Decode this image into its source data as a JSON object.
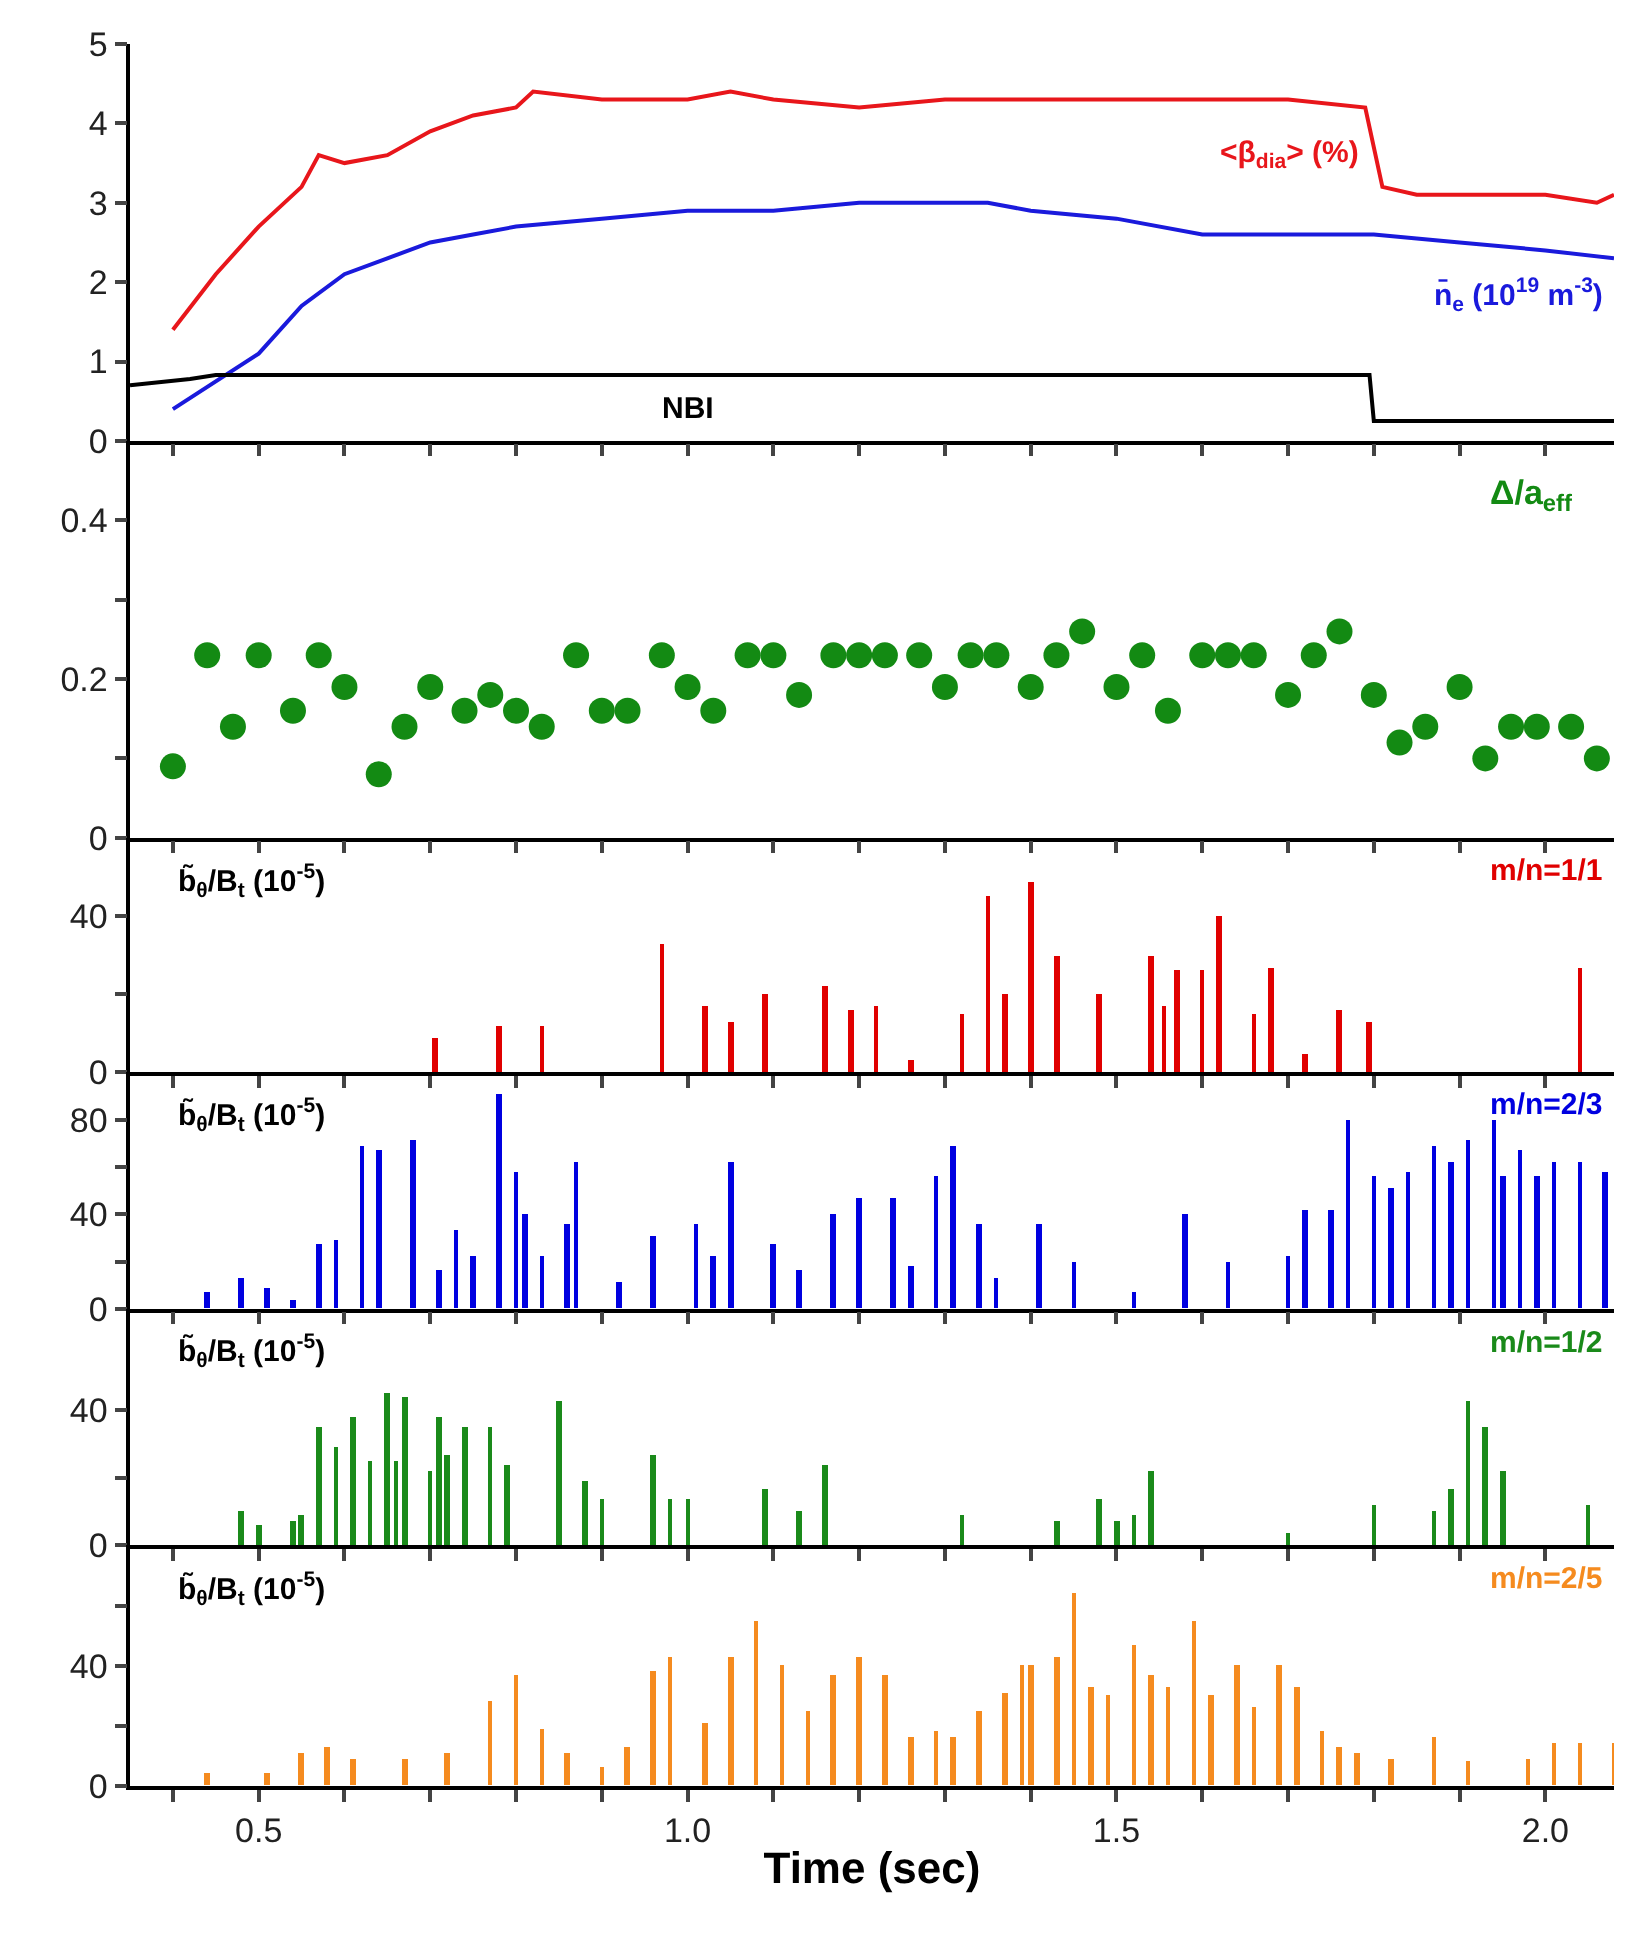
{
  "chart_data": [
    {
      "type": "line",
      "xlim": [
        0.35,
        2.08
      ],
      "xticks": [
        {
          "value": 0.4,
          "label": null
        },
        {
          "value": 0.5,
          "label": null
        },
        {
          "value": 0.6,
          "label": null
        },
        {
          "value": 0.7,
          "label": null
        },
        {
          "value": 0.8,
          "label": null
        },
        {
          "value": 0.9,
          "label": null
        },
        {
          "value": 1.0,
          "label": null
        },
        {
          "value": 1.1,
          "label": null
        },
        {
          "value": 1.2,
          "label": null
        },
        {
          "value": 1.3,
          "label": null
        },
        {
          "value": 1.4,
          "label": null
        },
        {
          "value": 1.5,
          "label": null
        },
        {
          "value": 1.6,
          "label": null
        },
        {
          "value": 1.7,
          "label": null
        },
        {
          "value": 1.8,
          "label": null
        },
        {
          "value": 1.9,
          "label": null
        },
        {
          "value": 2.0,
          "label": null
        }
      ],
      "ylim": [
        0,
        5
      ],
      "yticks": [
        0,
        1,
        2,
        3,
        4,
        5
      ],
      "tick_labels": "y",
      "series": [
        {
          "name": "<β$_{dia}$> (%)",
          "color": "#e8161b",
          "x": [
            0.4,
            0.45,
            0.5,
            0.55,
            0.57,
            0.6,
            0.65,
            0.7,
            0.75,
            0.8,
            0.82,
            0.9,
            1.0,
            1.05,
            1.1,
            1.2,
            1.3,
            1.4,
            1.5,
            1.6,
            1.7,
            1.79,
            1.81,
            1.85,
            1.9,
            2.0,
            2.06,
            2.08
          ],
          "values": [
            1.4,
            2.1,
            2.7,
            3.2,
            3.6,
            3.5,
            3.6,
            3.9,
            4.1,
            4.2,
            4.4,
            4.3,
            4.3,
            4.4,
            4.3,
            4.2,
            4.3,
            4.3,
            4.3,
            4.3,
            4.3,
            4.2,
            3.2,
            3.1,
            3.1,
            3.1,
            3.0,
            3.1
          ]
        },
        {
          "name": "n̄$_{e}$ (10$^{19}$ m$^{-3}$)",
          "color": "#1a1adc",
          "x": [
            0.4,
            0.5,
            0.55,
            0.6,
            0.65,
            0.7,
            0.75,
            0.8,
            0.9,
            1.0,
            1.1,
            1.2,
            1.3,
            1.35,
            1.4,
            1.5,
            1.6,
            1.7,
            1.8,
            1.9,
            2.0,
            2.08
          ],
          "values": [
            0.4,
            1.1,
            1.7,
            2.1,
            2.3,
            2.5,
            2.6,
            2.7,
            2.8,
            2.9,
            2.9,
            3.0,
            3.0,
            3.0,
            2.9,
            2.8,
            2.6,
            2.6,
            2.6,
            2.5,
            2.4,
            2.3
          ]
        },
        {
          "name": "NBI",
          "color": "#000000",
          "x": [
            0.35,
            0.42,
            0.45,
            1.795,
            1.8,
            2.08
          ],
          "values": [
            0.7,
            0.78,
            0.83,
            0.83,
            0.25,
            0.25
          ]
        }
      ]
    },
    {
      "type": "scatter",
      "marker": "circle",
      "xlim": [
        0.35,
        2.08
      ],
      "xticks": [
        {
          "value": 0.4,
          "label": null
        },
        {
          "value": 0.5,
          "label": null
        },
        {
          "value": 0.6,
          "label": null
        },
        {
          "value": 0.7,
          "label": null
        },
        {
          "value": 0.8,
          "label": null
        },
        {
          "value": 0.9,
          "label": null
        },
        {
          "value": 1.0,
          "label": null
        },
        {
          "value": 1.1,
          "label": null
        },
        {
          "value": 1.2,
          "label": null
        },
        {
          "value": 1.3,
          "label": null
        },
        {
          "value": 1.4,
          "label": null
        },
        {
          "value": 1.5,
          "label": null
        },
        {
          "value": 1.6,
          "label": null
        },
        {
          "value": 1.7,
          "label": null
        },
        {
          "value": 1.8,
          "label": null
        },
        {
          "value": 1.9,
          "label": null
        },
        {
          "value": 2.0,
          "label": null
        }
      ],
      "ylim": [
        0,
        0.5
      ],
      "yticks": [
        0,
        {
          "value": 0.1,
          "label": null
        },
        0.2,
        {
          "value": 0.3,
          "label": null
        },
        0.4
      ],
      "tick_labels": "y",
      "x": [
        0.4,
        0.44,
        0.47,
        0.5,
        0.54,
        0.57,
        0.6,
        0.64,
        0.67,
        0.7,
        0.74,
        0.77,
        0.8,
        0.83,
        0.87,
        0.9,
        0.93,
        0.97,
        1.0,
        1.03,
        1.07,
        1.1,
        1.13,
        1.17,
        1.2,
        1.23,
        1.27,
        1.3,
        1.33,
        1.36,
        1.4,
        1.43,
        1.46,
        1.5,
        1.53,
        1.56,
        1.6,
        1.63,
        1.66,
        1.7,
        1.73,
        1.76,
        1.8,
        1.83,
        1.86,
        1.9,
        1.93,
        1.96,
        1.99,
        2.03,
        2.06
      ],
      "series": [
        {
          "name": "Δ/a$_{eff}$",
          "color": "#138a13",
          "values": [
            0.09,
            0.23,
            0.14,
            0.23,
            0.16,
            0.23,
            0.19,
            0.08,
            0.14,
            0.19,
            0.16,
            0.18,
            0.16,
            0.14,
            0.23,
            0.16,
            0.16,
            0.23,
            0.19,
            0.16,
            0.23,
            0.23,
            0.18,
            0.23,
            0.23,
            0.23,
            0.23,
            0.19,
            0.23,
            0.23,
            0.19,
            0.23,
            0.26,
            0.19,
            0.23,
            0.16,
            0.23,
            0.23,
            0.23,
            0.18,
            0.23,
            0.26,
            0.18,
            0.12,
            0.14,
            0.19,
            0.1,
            0.14,
            0.14,
            0.14,
            0.1
          ]
        }
      ]
    },
    {
      "type": "bar",
      "xlim": [
        0.35,
        2.08
      ],
      "xticks": [
        {
          "value": 0.4,
          "label": null
        },
        {
          "value": 0.5,
          "label": null
        },
        {
          "value": 0.6,
          "label": null
        },
        {
          "value": 0.7,
          "label": null
        },
        {
          "value": 0.8,
          "label": null
        },
        {
          "value": 0.9,
          "label": null
        },
        {
          "value": 1.0,
          "label": null
        },
        {
          "value": 1.1,
          "label": null
        },
        {
          "value": 1.2,
          "label": null
        },
        {
          "value": 1.3,
          "label": null
        },
        {
          "value": 1.4,
          "label": null
        },
        {
          "value": 1.5,
          "label": null
        },
        {
          "value": 1.6,
          "label": null
        },
        {
          "value": 1.7,
          "label": null
        },
        {
          "value": 1.8,
          "label": null
        },
        {
          "value": 1.9,
          "label": null
        },
        {
          "value": 2.0,
          "label": null
        }
      ],
      "ylim": [
        0,
        60
      ],
      "yticks": [
        0,
        {
          "value": 20,
          "label": null
        },
        40
      ],
      "tick_labels": "y",
      "annotations": [
        "b̃$_{θ}$/B$_{t}$ (10$^{-5}$)"
      ],
      "x": [
        0.705,
        0.78,
        0.83,
        0.97,
        1.02,
        1.05,
        1.09,
        1.16,
        1.19,
        1.22,
        1.26,
        1.32,
        1.35,
        1.37,
        1.4,
        1.43,
        1.48,
        1.54,
        1.555,
        1.57,
        1.6,
        1.62,
        1.66,
        1.68,
        1.72,
        1.76,
        1.795,
        2.04
      ],
      "series": [
        {
          "name": "m/n=1/1",
          "color": "#e00000",
          "values": [
            9,
            12,
            12,
            33,
            17,
            13,
            20,
            22,
            16,
            17,
            3,
            15,
            45,
            20,
            49,
            30,
            20,
            30,
            17,
            26,
            26,
            40,
            15,
            27,
            5,
            16,
            13,
            27
          ]
        }
      ]
    },
    {
      "type": "bar",
      "xlim": [
        0.35,
        2.08
      ],
      "xticks": [
        {
          "value": 0.4,
          "label": null
        },
        {
          "value": 0.5,
          "label": null
        },
        {
          "value": 0.6,
          "label": null
        },
        {
          "value": 0.7,
          "label": null
        },
        {
          "value": 0.8,
          "label": null
        },
        {
          "value": 0.9,
          "label": null
        },
        {
          "value": 1.0,
          "label": null
        },
        {
          "value": 1.1,
          "label": null
        },
        {
          "value": 1.2,
          "label": null
        },
        {
          "value": 1.3,
          "label": null
        },
        {
          "value": 1.4,
          "label": null
        },
        {
          "value": 1.5,
          "label": null
        },
        {
          "value": 1.6,
          "label": null
        },
        {
          "value": 1.7,
          "label": null
        },
        {
          "value": 1.8,
          "label": null
        },
        {
          "value": 1.9,
          "label": null
        },
        {
          "value": 2.0,
          "label": null
        }
      ],
      "ylim": [
        0,
        100
      ],
      "yticks": [
        0,
        {
          "value": 20,
          "label": null
        },
        40,
        {
          "value": 60,
          "label": null
        },
        80
      ],
      "tick_labels": "y",
      "annotations": [
        "b̃$_{θ}$/B$_{t}$ (10$^{-5}$)"
      ],
      "x": [
        0.44,
        0.48,
        0.51,
        0.54,
        0.57,
        0.59,
        0.62,
        0.64,
        0.68,
        0.71,
        0.73,
        0.75,
        0.78,
        0.8,
        0.81,
        0.83,
        0.86,
        0.87,
        0.92,
        0.96,
        1.01,
        1.03,
        1.05,
        1.1,
        1.13,
        1.17,
        1.2,
        1.24,
        1.26,
        1.29,
        1.31,
        1.34,
        1.36,
        1.41,
        1.45,
        1.52,
        1.58,
        1.63,
        1.7,
        1.72,
        1.75,
        1.77,
        1.8,
        1.82,
        1.84,
        1.87,
        1.89,
        1.91,
        1.94,
        1.95,
        1.97,
        1.99,
        2.01,
        2.04,
        2.07
      ],
      "series": [
        {
          "name": "m/n=2/3",
          "color": "#0000e0",
          "values": [
            7,
            13,
            9,
            4,
            27,
            29,
            69,
            67,
            71,
            16,
            33,
            22,
            91,
            58,
            40,
            22,
            36,
            62,
            11,
            31,
            36,
            22,
            62,
            27,
            16,
            40,
            47,
            47,
            18,
            56,
            69,
            36,
            13,
            36,
            20,
            7,
            40,
            20,
            22,
            42,
            42,
            80,
            56,
            51,
            58,
            69,
            62,
            71,
            80,
            56,
            67,
            56,
            62,
            62,
            58
          ]
        }
      ]
    },
    {
      "type": "bar",
      "xlim": [
        0.35,
        2.08
      ],
      "xticks": [
        {
          "value": 0.4,
          "label": null
        },
        {
          "value": 0.5,
          "label": null
        },
        {
          "value": 0.6,
          "label": null
        },
        {
          "value": 0.7,
          "label": null
        },
        {
          "value": 0.8,
          "label": null
        },
        {
          "value": 0.9,
          "label": null
        },
        {
          "value": 1.0,
          "label": null
        },
        {
          "value": 1.1,
          "label": null
        },
        {
          "value": 1.2,
          "label": null
        },
        {
          "value": 1.3,
          "label": null
        },
        {
          "value": 1.4,
          "label": null
        },
        {
          "value": 1.5,
          "label": null
        },
        {
          "value": 1.6,
          "label": null
        },
        {
          "value": 1.7,
          "label": null
        },
        {
          "value": 1.8,
          "label": null
        },
        {
          "value": 1.9,
          "label": null
        },
        {
          "value": 2.0,
          "label": null
        }
      ],
      "ylim": [
        0,
        70
      ],
      "yticks": [
        0,
        {
          "value": 20,
          "label": null
        },
        40
      ],
      "tick_labels": "y",
      "annotations": [
        "b̃$_{θ}$/B$_{t}$ (10$^{-5}$)"
      ],
      "x": [
        0.48,
        0.5,
        0.54,
        0.55,
        0.57,
        0.59,
        0.61,
        0.63,
        0.65,
        0.66,
        0.67,
        0.7,
        0.71,
        0.72,
        0.74,
        0.77,
        0.79,
        0.85,
        0.88,
        0.9,
        0.96,
        0.98,
        1.0,
        1.09,
        1.13,
        1.16,
        1.32,
        1.43,
        1.48,
        1.5,
        1.52,
        1.54,
        1.7,
        1.8,
        1.87,
        1.89,
        1.91,
        1.93,
        1.95,
        2.05
      ],
      "series": [
        {
          "name": "m/n=1/2",
          "color": "#1a8a1a",
          "values": [
            10,
            6,
            7,
            9,
            35,
            29,
            38,
            25,
            45,
            25,
            44,
            22,
            38,
            27,
            35,
            35,
            24,
            43,
            19,
            14,
            27,
            14,
            14,
            17,
            10,
            24,
            9,
            7,
            14,
            7,
            9,
            22,
            4,
            12,
            10,
            17,
            43,
            35,
            22,
            12
          ]
        }
      ]
    },
    {
      "type": "bar",
      "xlim": [
        0.35,
        2.08
      ],
      "xticks": [
        {
          "value": 0.4,
          "label": null
        },
        {
          "value": 0.5,
          "label": "0.5"
        },
        {
          "value": 0.6,
          "label": null
        },
        {
          "value": 0.7,
          "label": null
        },
        {
          "value": 0.8,
          "label": null
        },
        {
          "value": 0.9,
          "label": null
        },
        {
          "value": 1.0,
          "label": "1.0"
        },
        {
          "value": 1.1,
          "label": null
        },
        {
          "value": 1.2,
          "label": null
        },
        {
          "value": 1.3,
          "label": null
        },
        {
          "value": 1.4,
          "label": null
        },
        {
          "value": 1.5,
          "label": "1.5"
        },
        {
          "value": 1.6,
          "label": null
        },
        {
          "value": 1.7,
          "label": null
        },
        {
          "value": 1.8,
          "label": null
        },
        {
          "value": 1.9,
          "label": null
        },
        {
          "value": 2.0,
          "label": "2.0"
        }
      ],
      "ylim": [
        0,
        80
      ],
      "yticks": [
        0,
        {
          "value": 20,
          "label": null
        },
        40,
        {
          "value": 60,
          "label": null
        }
      ],
      "xlabel": "Time (sec)",
      "annotations": [
        "b̃$_{θ}$/B$_{t}$ (10$^{-5}$)"
      ],
      "x": [
        0.44,
        0.51,
        0.55,
        0.58,
        0.61,
        0.67,
        0.72,
        0.77,
        0.8,
        0.83,
        0.86,
        0.9,
        0.93,
        0.96,
        0.98,
        1.02,
        1.05,
        1.08,
        1.11,
        1.14,
        1.17,
        1.2,
        1.23,
        1.26,
        1.29,
        1.31,
        1.34,
        1.37,
        1.39,
        1.4,
        1.43,
        1.45,
        1.47,
        1.49,
        1.52,
        1.54,
        1.56,
        1.59,
        1.61,
        1.64,
        1.66,
        1.69,
        1.71,
        1.74,
        1.76,
        1.78,
        1.82,
        1.87,
        1.91,
        1.98,
        2.01,
        2.04,
        2.08
      ],
      "series": [
        {
          "name": "m/n=2/5",
          "color": "#f58b1f",
          "values": [
            4,
            4,
            11,
            13,
            9,
            9,
            11,
            28,
            37,
            19,
            11,
            6,
            13,
            38,
            43,
            21,
            43,
            55,
            40,
            25,
            37,
            43,
            37,
            16,
            18,
            16,
            25,
            31,
            40,
            40,
            43,
            64,
            33,
            30,
            47,
            37,
            33,
            55,
            30,
            40,
            26,
            40,
            33,
            18,
            13,
            11,
            9,
            16,
            8,
            9,
            14,
            14,
            14
          ]
        }
      ]
    }
  ]
}
